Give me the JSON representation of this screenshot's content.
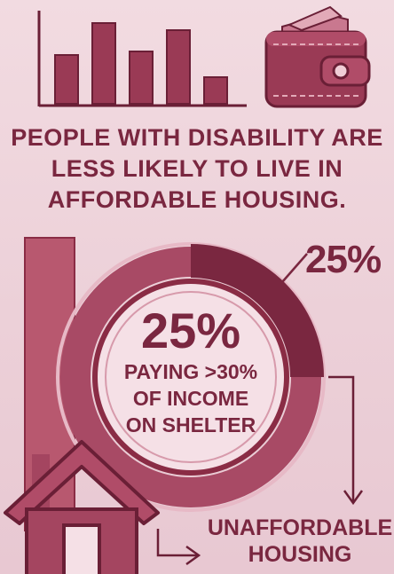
{
  "headline": {
    "line1": "PEOPLE WITH DISABILITY ARE",
    "line2": "LESS LIKELY TO LIVE IN",
    "line3": "AFFORDABLE HOUSING."
  },
  "ring": {
    "callout_percent": "25%",
    "center_percent": "25%",
    "center_line1": "PAYING >30%",
    "center_line2": "OF INCOME",
    "center_line3": "ON SHELTER",
    "highlighted_share": 0.25
  },
  "bottom_label": {
    "line1": "UNAFFORDABLE",
    "line2": "HOUSING"
  },
  "icons": [
    "bar-chart-icon",
    "wallet-icon",
    "house-icon",
    "arrow-down-icon",
    "arrow-right-icon"
  ],
  "colors": {
    "primary": "#7a2740",
    "light": "#d89aab",
    "background": "#f2dbe1"
  }
}
